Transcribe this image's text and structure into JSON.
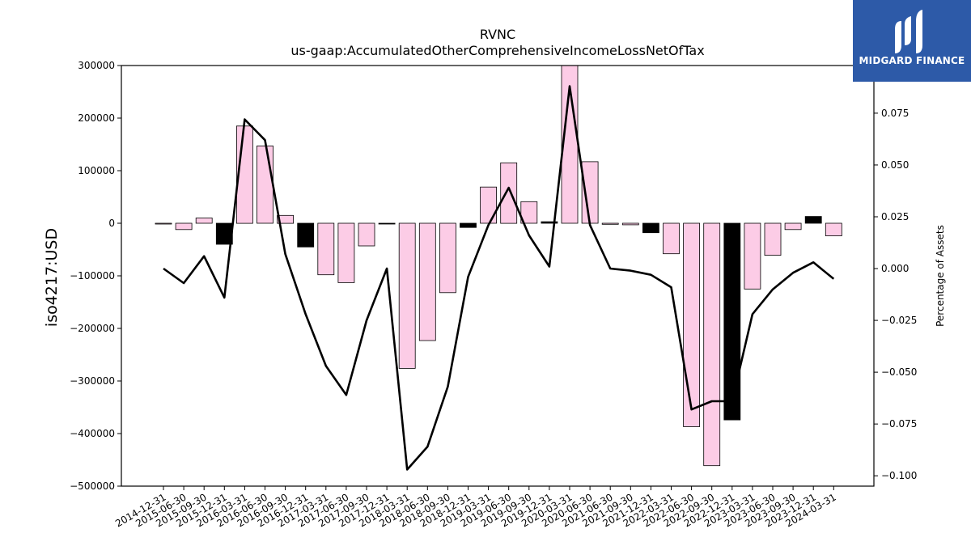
{
  "brand": {
    "name": "MIDGARD FINANCE",
    "bg_color": "#2d5aa8",
    "text_color": "#ffffff",
    "icon": "midgard-logo-icon"
  },
  "chart_data": {
    "type": "bar",
    "title": "RVNC",
    "subtitle": "us-gaap:AccumulatedOtherComprehensiveIncomeLossNetOfTax",
    "ylabel": "iso4217:USD",
    "y2label": "Percentage of Assets",
    "ylim": [
      -500000,
      300000
    ],
    "y2lim": [
      -0.105,
      0.098
    ],
    "yticks": [
      300000,
      200000,
      100000,
      0,
      -100000,
      -200000,
      -300000,
      -400000,
      -500000
    ],
    "yticklabels": [
      "300000",
      "200000",
      "100000",
      "0",
      "−100000",
      "−200000",
      "−300000",
      "−400000",
      "−500000"
    ],
    "y2ticks": [
      0.075,
      0.05,
      0.025,
      0.0,
      -0.025,
      -0.05,
      -0.075,
      -0.1
    ],
    "y2ticklabels": [
      "0.075",
      "0.050",
      "0.025",
      "0.000",
      "−0.025",
      "−0.050",
      "−0.075",
      "−0.100"
    ],
    "grid": false,
    "colors": {
      "bar_positive": "#fccce6",
      "bar_negative_change": "#000000",
      "bar_edge": "#000000",
      "line": "#000000"
    },
    "categories": [
      "2014-12-31",
      "2015-06-30",
      "2015-09-30",
      "2015-12-31",
      "2016-03-31",
      "2016-06-30",
      "2016-09-30",
      "2016-12-31",
      "2017-03-31",
      "2017-06-30",
      "2017-09-30",
      "2017-12-31",
      "2018-03-31",
      "2018-06-30",
      "2018-09-30",
      "2018-12-31",
      "2019-03-31",
      "2019-06-30",
      "2019-09-30",
      "2019-12-31",
      "2020-03-31",
      "2020-06-30",
      "2021-06-30",
      "2021-09-30",
      "2021-12-31",
      "2022-03-31",
      "2022-06-30",
      "2022-09-30",
      "2022-12-31",
      "2023-03-31",
      "2023-06-30",
      "2023-09-30",
      "2023-12-31",
      "2024-03-31"
    ],
    "series": [
      {
        "axis": "left",
        "kind": "bar",
        "values": [
          -1000,
          -12000,
          10000,
          -40000,
          185000,
          147000,
          15000,
          -45000,
          -98000,
          -113000,
          -43000,
          -1000,
          -276000,
          -223000,
          -132000,
          -8000,
          69000,
          115000,
          41000,
          3000,
          303000,
          117000,
          -2000,
          -3000,
          -18000,
          -58000,
          -387000,
          -461000,
          -374000,
          -125000,
          -61000,
          -12000,
          13000,
          -24000
        ],
        "highlight": [
          false,
          false,
          false,
          true,
          false,
          false,
          false,
          true,
          false,
          false,
          false,
          true,
          false,
          false,
          false,
          true,
          false,
          false,
          false,
          true,
          false,
          false,
          false,
          false,
          true,
          false,
          false,
          false,
          true,
          false,
          false,
          false,
          true,
          false
        ]
      },
      {
        "axis": "right",
        "kind": "line",
        "values": [
          0.0,
          -0.007,
          0.006,
          -0.014,
          0.072,
          0.062,
          0.007,
          -0.022,
          -0.047,
          -0.061,
          -0.025,
          0.0,
          -0.097,
          -0.086,
          -0.057,
          -0.004,
          0.021,
          0.039,
          0.016,
          0.001,
          0.088,
          0.021,
          0.0,
          -0.001,
          -0.003,
          -0.009,
          -0.068,
          -0.064,
          -0.064,
          -0.022,
          -0.01,
          -0.002,
          0.003,
          -0.005
        ]
      }
    ]
  }
}
